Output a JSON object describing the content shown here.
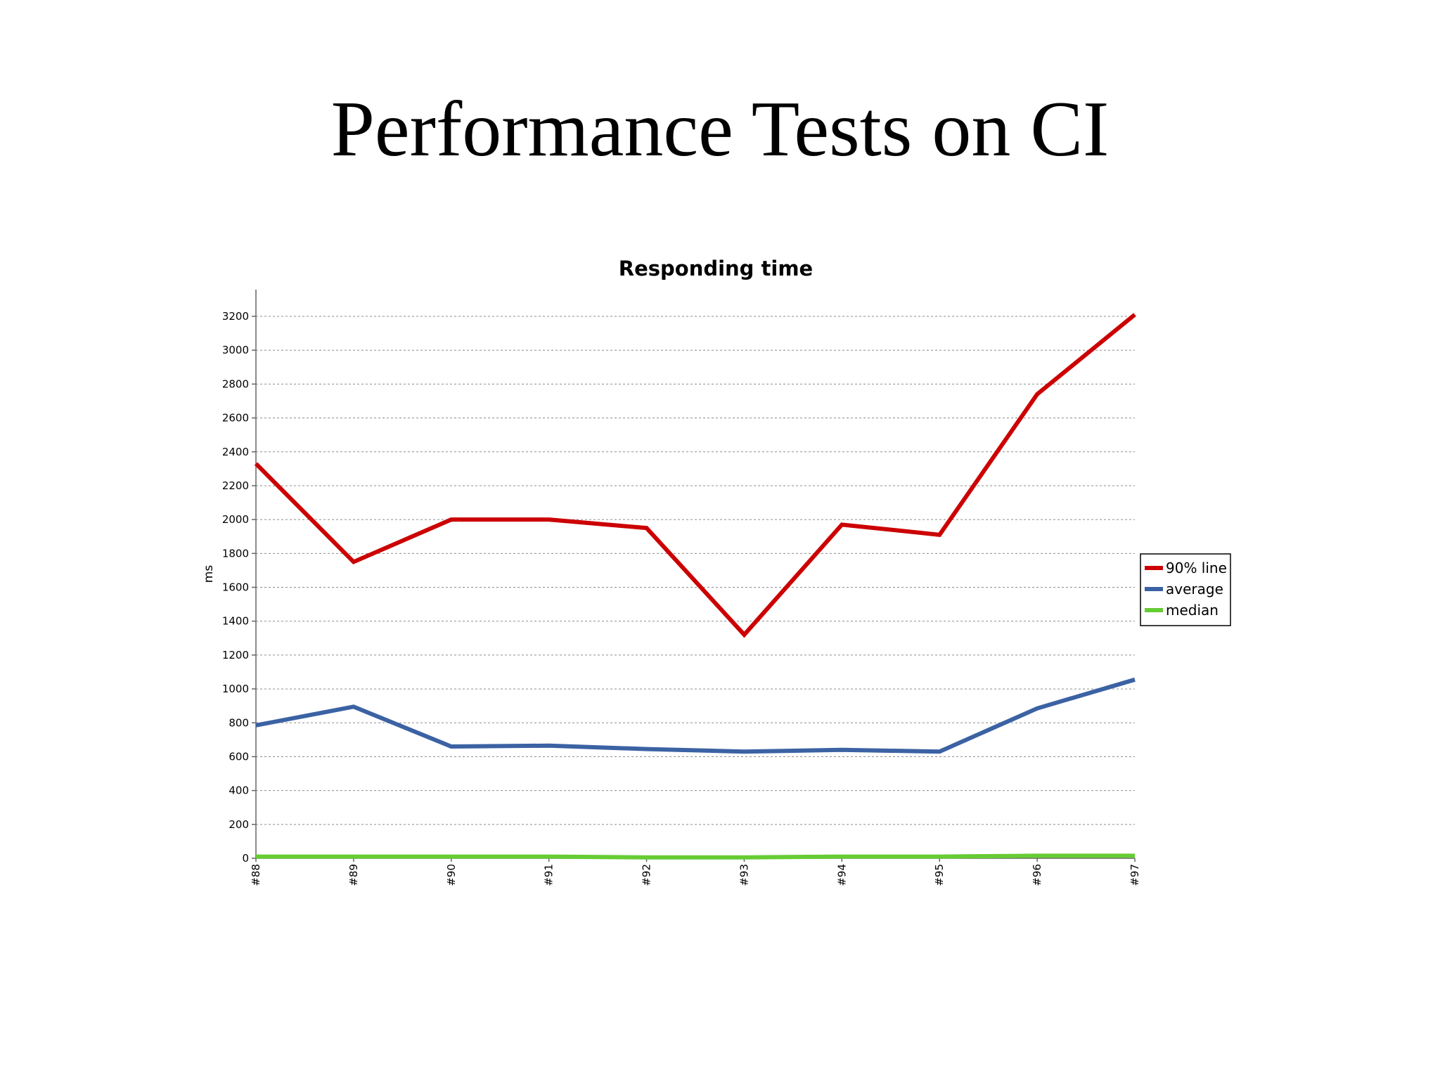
{
  "slide": {
    "title": "Performance Tests on CI"
  },
  "chart_data": {
    "type": "line",
    "title": "Responding time",
    "xlabel": "",
    "ylabel": "ms",
    "ylim": [
      0,
      3200
    ],
    "yticks": [
      0,
      200,
      400,
      600,
      800,
      1000,
      1200,
      1400,
      1600,
      1800,
      2000,
      2200,
      2400,
      2600,
      2800,
      3000,
      3200
    ],
    "grid": true,
    "legend_position": "right",
    "categories": [
      "#88",
      "#89",
      "#90",
      "#91",
      "#92",
      "#93",
      "#94",
      "#95",
      "#96",
      "#97"
    ],
    "series": [
      {
        "name": "90% line",
        "color": "#cc0000",
        "values": [
          2330,
          1750,
          2000,
          2000,
          1950,
          1320,
          1970,
          1910,
          2740,
          3210
        ]
      },
      {
        "name": "average",
        "color": "#3b62a3",
        "values": [
          785,
          895,
          660,
          665,
          645,
          630,
          640,
          630,
          885,
          1055
        ]
      },
      {
        "name": "median",
        "color": "#66cc33",
        "values": [
          10,
          10,
          10,
          10,
          5,
          5,
          10,
          10,
          15,
          15
        ]
      }
    ]
  }
}
